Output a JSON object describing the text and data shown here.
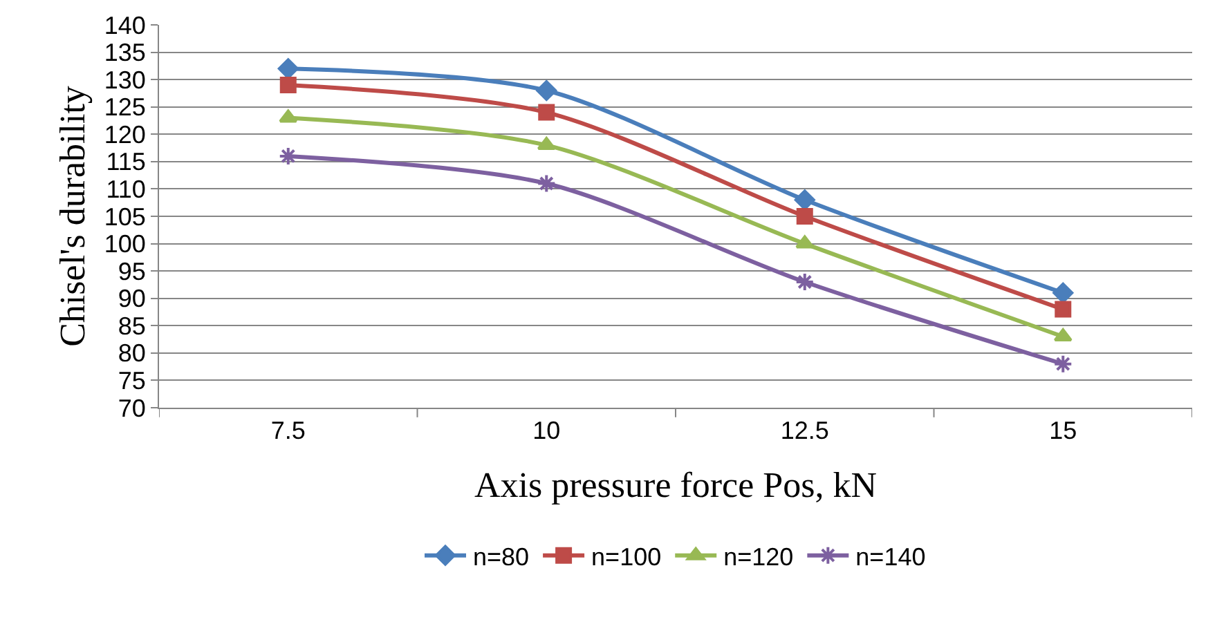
{
  "chart_data": {
    "type": "line",
    "xlabel": "Axis pressure force Pos, kN",
    "ylabel": "Chisel's durability",
    "categories": [
      "7.5",
      "10",
      "12.5",
      "15"
    ],
    "series": [
      {
        "name": "n=80",
        "color": "#4a7ebb",
        "marker": "diamond",
        "values": [
          132,
          128,
          108,
          91
        ]
      },
      {
        "name": "n=100",
        "color": "#be4b48",
        "marker": "square",
        "values": [
          129,
          124,
          105,
          88
        ]
      },
      {
        "name": "n=120",
        "color": "#98b954",
        "marker": "triangle",
        "values": [
          123,
          118,
          100,
          83
        ]
      },
      {
        "name": "n=140",
        "color": "#7d60a0",
        "marker": "cross",
        "values": [
          116,
          111,
          93,
          78
        ]
      }
    ],
    "ylim": [
      70,
      140
    ],
    "yticks": [
      70,
      75,
      80,
      85,
      90,
      95,
      100,
      105,
      110,
      115,
      120,
      125,
      130,
      135,
      140
    ],
    "grid": "y",
    "legend": "bottom"
  }
}
